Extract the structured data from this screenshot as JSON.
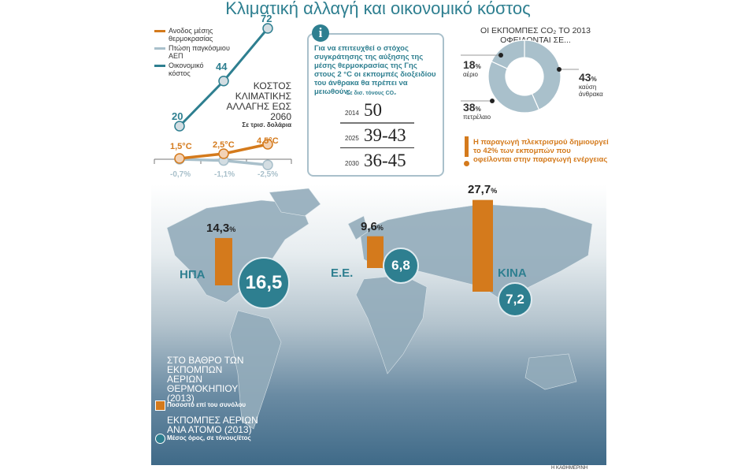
{
  "title": "Κλιματική αλλαγή και οικονομικό κόστος",
  "cost_chart": {
    "legend": [
      "Ανοδος μέσης θερμοκρασίας",
      "Πτώση παγκόσμιου ΑΕΠ",
      "Οικονομικό κόστος"
    ],
    "heading": "ΚΟΣΤΟΣ ΚΛΙΜΑΤΙΚΗΣ ΑΛΛΑΓΗΣ ΕΩΣ 2060",
    "unit": "Σε τρισ. δολάρια",
    "cost_labels": [
      "20",
      "44",
      "72"
    ],
    "temp_labels": [
      "1,5°C",
      "2,5°C",
      "4,5°C"
    ],
    "gdp_labels": [
      "-0,7%",
      "-1,1%",
      "-2,5%"
    ]
  },
  "info": {
    "text": "Για να επιτευχθεί ο στόχος συγκράτησης της αύξησης της μέσης θερμοκρασίας της Γης στους 2 °C οι εκπομπές διοξειδίου του άνθρακα θα πρέπει να μειωθούν:",
    "unit": "Σε δισ. τόνους CO₂",
    "rows": [
      {
        "year": "2014",
        "value": "50"
      },
      {
        "year": "2025",
        "value": "39-43"
      },
      {
        "year": "2030",
        "value": "36-45"
      }
    ]
  },
  "donut": {
    "heading1": "ΟΙ ΕΚΠΟΜΠΕΣ CO₂ ΤΟ 2013",
    "heading2": "ΟΦΕΙΛΟΝΤΑΙ ΣΕ...",
    "slices": [
      {
        "value": "43",
        "label": "καύση άνθρακα"
      },
      {
        "value": "38",
        "label": "πετρέλαιο"
      },
      {
        "value": "18",
        "label": "αέριο"
      }
    ],
    "note": "Η παραγωγή πλεκτρισμού δημιουργεί το 42% των εκπομπών που οφείλονται στην παραγωγή ενέργειας"
  },
  "map": {
    "regions": [
      {
        "name": "ΗΠΑ",
        "share": "14,3",
        "per_capita": "16,5"
      },
      {
        "name": "Ε.Ε.",
        "share": "9,6",
        "per_capita": "6,8"
      },
      {
        "name": "ΚΙΝΑ",
        "share": "27,7",
        "per_capita": "7,2"
      }
    ],
    "legend_share_title": "ΣΤΟ ΒΑΘΡΟ ΤΩΝ ΕΚΠΟΜΠΩΝ ΑΕΡΙΩΝ ΘΕΡΜΟΚΗΠΙΟΥ (2013)",
    "legend_share_sub": "Ποσοστό επί του συνόλου",
    "legend_pc_title": "ΕΚΠΟΜΠΕΣ ΑΕΡΙΩΝ ΑΝΑ ΑΤΟΜΟ (2013)",
    "legend_pc_sub": "Μέσος όρος, σε τόνους/έτος",
    "pct_sign": "%"
  },
  "credit": "Η ΚΑΘΗΜΕΡΙΝΗ",
  "colors": {
    "teal": "#2e7f90",
    "orange": "#d47a1c",
    "grey": "#a9c0cb"
  },
  "chart_data": [
    {
      "type": "line",
      "x": [
        "20",
        "44",
        "72"
      ],
      "series": [
        {
          "name": "Οικονομικό κόστος",
          "values": [
            20,
            44,
            72
          ]
        },
        {
          "name": "Ανοδος μέσης θερμοκρασίας",
          "values": [
            1.5,
            2.5,
            4.5
          ]
        },
        {
          "name": "Πτώση παγκόσμιου ΑΕΠ",
          "values": [
            -0.7,
            -1.1,
            -2.5
          ]
        }
      ]
    },
    {
      "type": "pie",
      "categories": [
        "καύση άνθρακα",
        "πετρέλαιο",
        "αέριο"
      ],
      "values": [
        43,
        38,
        18
      ]
    },
    {
      "type": "bar",
      "categories": [
        "ΗΠΑ",
        "Ε.Ε.",
        "ΚΙΝΑ"
      ],
      "values": [
        14.3,
        9.6,
        27.7
      ],
      "per_capita": [
        16.5,
        6.8,
        7.2
      ]
    }
  ]
}
